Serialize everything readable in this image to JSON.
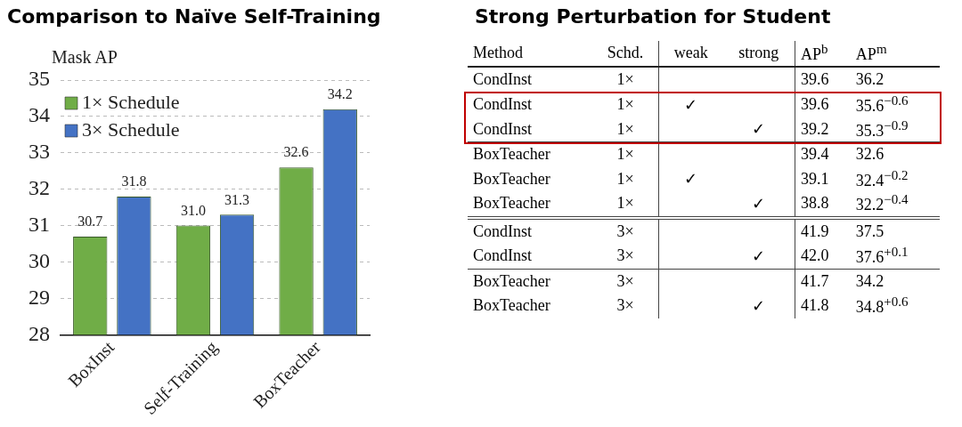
{
  "chart_data": [
    {
      "type": "bar",
      "title": "Comparison to Naïve Self-Training",
      "ylabel": "Mask AP",
      "categories": [
        "BoxInst",
        "Self-Training",
        "BoxTeacher"
      ],
      "series": [
        {
          "name": "1× Schedule",
          "color": "#70ad47",
          "values": [
            30.7,
            31.0,
            32.6
          ],
          "value_labels": [
            "30.7",
            "31.0",
            "32.6"
          ]
        },
        {
          "name": "3× Schedule",
          "color": "#4472c4",
          "values": [
            31.8,
            31.3,
            34.2
          ],
          "value_labels": [
            "31.8",
            "31.3",
            "34.2"
          ]
        }
      ],
      "ylim": [
        28,
        35
      ],
      "yticks": [
        28,
        29,
        30,
        31,
        32,
        33,
        34,
        35
      ],
      "grid": "y",
      "legend": "top left"
    },
    {
      "type": "other",
      "title": "Strong Perturbation for Student",
      "annotations": [
        "Method",
        "Schd.",
        "weak",
        "strong",
        "AP$^{b}$",
        "AP$^{m}$",
        "CondInst",
        "1×",
        null,
        null,
        "39.6",
        "36.2",
        "CondInst",
        "1×",
        "✓",
        null,
        "39.6",
        "35.6$^{−0.6}$",
        "CondInst",
        "1×",
        null,
        "✓",
        "39.2",
        "35.3$^{−0.9}$",
        "BoxTeacher",
        "1×",
        null,
        null,
        "39.4",
        "32.6",
        "BoxTeacher",
        "1×",
        "✓",
        null,
        "39.1",
        "32.4$^{−0.2}$",
        "BoxTeacher",
        "1×",
        null,
        "✓",
        "38.8",
        "32.2$^{−0.4}$",
        "CondInst",
        "3×",
        null,
        null,
        "41.9",
        "37.5",
        "CondInst",
        "3×",
        null,
        "✓",
        "42.0",
        "37.6$^{+0.1}$",
        "BoxTeacher",
        "3×",
        null,
        null,
        "41.7",
        "34.2",
        "BoxTeacher",
        "3×",
        null,
        "✓",
        "41.8",
        "34.8$^{+0.6}$"
      ]
    }
  ]
}
